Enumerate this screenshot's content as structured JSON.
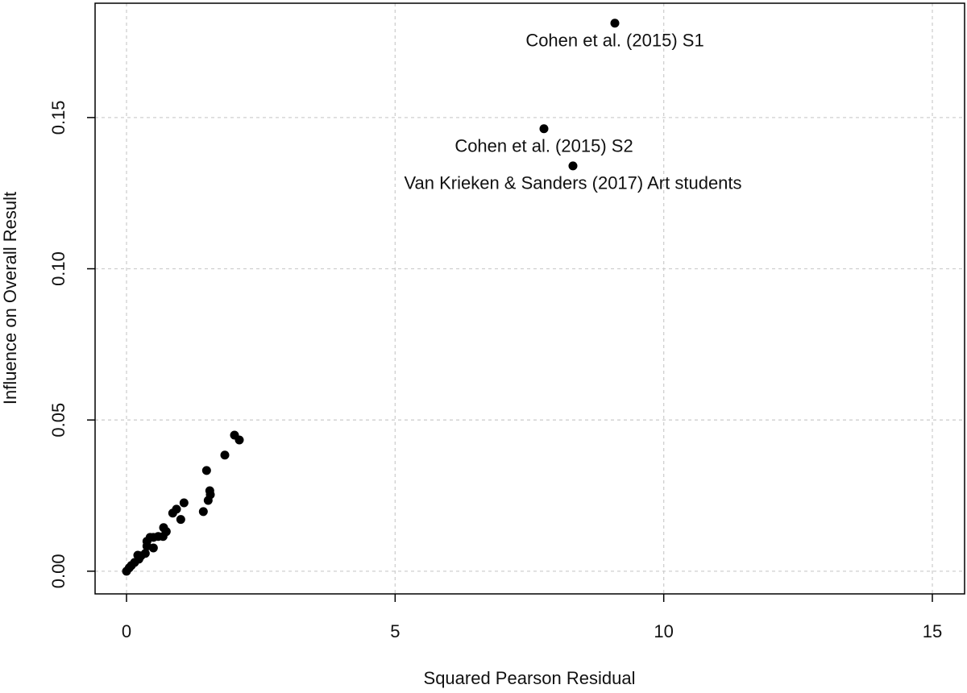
{
  "chart_data": {
    "type": "scatter",
    "x_label": "Squared Pearson Residual",
    "y_label": "Influence on Overall Result",
    "color": "#000000",
    "grid": true,
    "xlim": [
      -0.585,
      15.6
    ],
    "ylim": [
      -0.0075,
      0.1878
    ],
    "xticks": [
      0,
      5,
      10,
      15
    ],
    "yticks": [
      {
        "value": 0,
        "label": "0.00"
      },
      0.05,
      {
        "value": 0.1,
        "label": "0.10"
      },
      0.15
    ],
    "x": [
      9.09,
      7.77,
      8.31,
      2.01,
      2.1,
      1.83,
      1.49,
      1.55,
      1.56,
      1.52,
      1.43,
      1.07,
      1.01,
      0.93,
      0.86,
      0.74,
      0.68,
      0.59,
      0.5,
      0.44,
      0.38,
      0.5,
      0.38,
      0.35,
      0.27,
      0.23,
      0.15,
      0.09,
      0.05,
      0.0,
      0.69,
      0.21
    ],
    "y": [
      0.1812,
      0.1463,
      0.134,
      0.045,
      0.0434,
      0.0384,
      0.0333,
      0.0266,
      0.0253,
      0.0234,
      0.0197,
      0.0226,
      0.0171,
      0.0205,
      0.0192,
      0.0131,
      0.0115,
      0.0115,
      0.0112,
      0.0112,
      0.0099,
      0.0077,
      0.0083,
      0.0059,
      0.0051,
      0.004,
      0.0029,
      0.0019,
      0.0011,
      0.0,
      0.0144,
      0.0053
    ],
    "point_labels": [
      "Cohen et al. (2015) S1",
      "Cohen et al. (2015) S2",
      "Van Krieken & Sanders (2017) Art students",
      null,
      null,
      null,
      null,
      null,
      null,
      null,
      null,
      null,
      null,
      null,
      null,
      null,
      null,
      null,
      null,
      null,
      null,
      null,
      null,
      null,
      null,
      null,
      null,
      null,
      null,
      null,
      null,
      null
    ]
  }
}
